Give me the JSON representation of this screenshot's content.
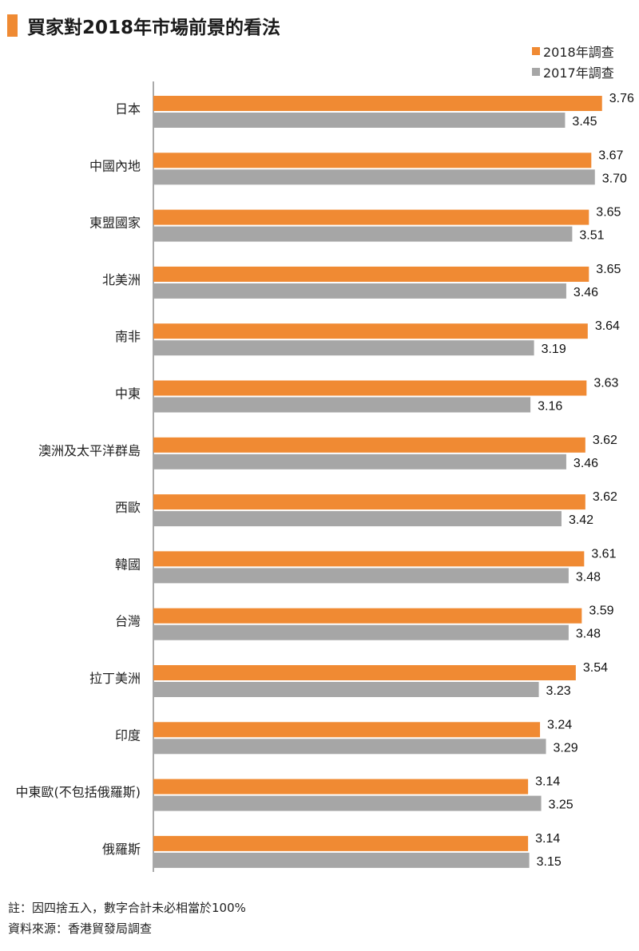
{
  "title": "買家對2018年市場前景的看法",
  "colors": {
    "series_2018": "#f08a33",
    "series_2017": "#a6a6a6",
    "accent": "#ef8a33"
  },
  "legend": {
    "item_2018": "2018年調查",
    "item_2017": "2017年調查"
  },
  "chart_data": {
    "type": "bar",
    "orientation": "horizontal",
    "categories": [
      "日本",
      "中國內地",
      "東盟國家",
      "北美洲",
      "南非",
      "中東",
      "澳洲及太平洋群島",
      "西歐",
      "韓國",
      "台灣",
      "拉丁美洲",
      "印度",
      "中東歐(不包括俄羅斯)",
      "俄羅斯"
    ],
    "series": [
      {
        "name": "2018年調查",
        "color": "#f08a33",
        "values": [
          3.76,
          3.67,
          3.65,
          3.65,
          3.64,
          3.63,
          3.62,
          3.62,
          3.61,
          3.59,
          3.54,
          3.24,
          3.14,
          3.14
        ]
      },
      {
        "name": "2017年調查",
        "color": "#a6a6a6",
        "values": [
          3.45,
          3.7,
          3.51,
          3.46,
          3.19,
          3.16,
          3.46,
          3.42,
          3.48,
          3.48,
          3.23,
          3.29,
          3.25,
          3.15
        ]
      }
    ],
    "value_labels": {
      "series_2018": [
        "3.76",
        "3.67",
        "3.65",
        "3.65",
        "3.64",
        "3.63",
        "3.62",
        "3.62",
        "3.61",
        "3.59",
        "3.54",
        "3.24",
        "3.14",
        "3.14"
      ],
      "series_2017": [
        "3.45",
        "3.70",
        "3.51",
        "3.46",
        "3.19",
        "3.16",
        "3.46",
        "3.42",
        "3.48",
        "3.48",
        "3.23",
        "3.29",
        "3.25",
        "3.15"
      ]
    },
    "axis_min": 0,
    "legend_position": "top-right",
    "grid": false,
    "xlabel": "",
    "ylabel": ""
  },
  "notes": {
    "note1": "註：因四捨五入，數字合計未必相當於100%",
    "note2": "資料來源：香港貿發局調查"
  }
}
